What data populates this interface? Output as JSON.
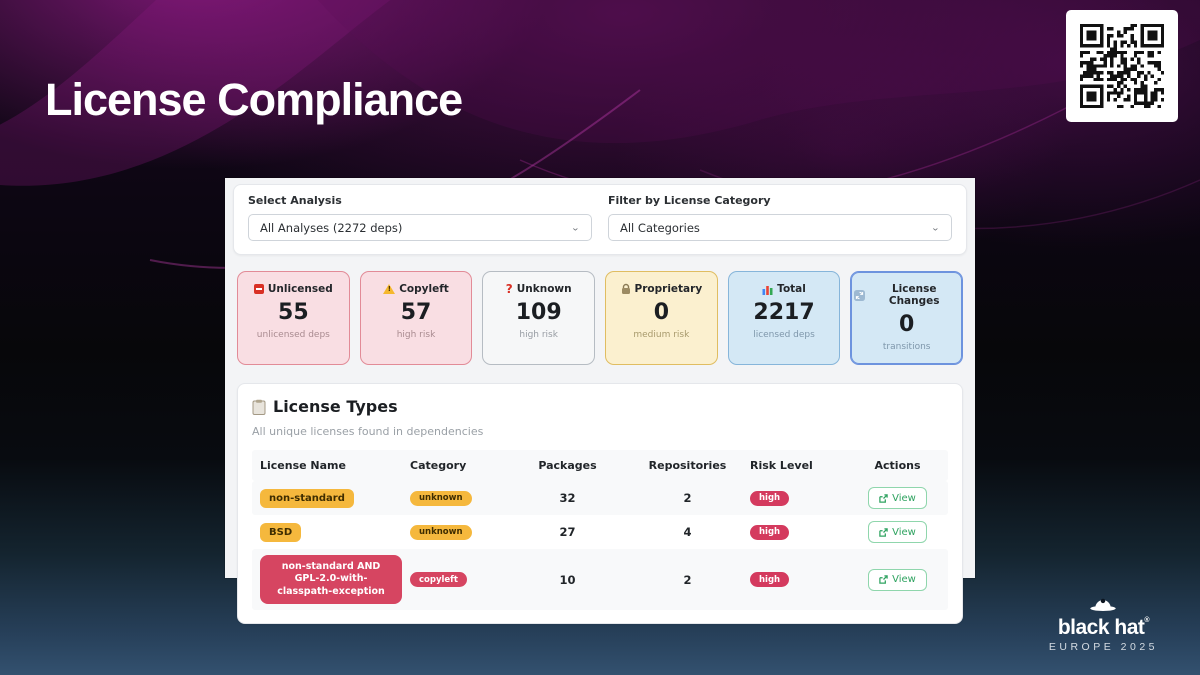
{
  "slide": {
    "title": "License Compliance",
    "logo": {
      "brand": "black hat",
      "trademark": "®",
      "event": "EUROPE 2025"
    }
  },
  "dashboard": {
    "filters": {
      "analysis": {
        "label": "Select Analysis",
        "value": "All Analyses (2272 deps)"
      },
      "category": {
        "label": "Filter by License Category",
        "value": "All Categories"
      }
    },
    "stats": [
      {
        "icon": "no-entry-icon",
        "label": "Unlicensed",
        "value": "55",
        "sub": "unlicensed deps"
      },
      {
        "icon": "warning-icon",
        "label": "Copyleft",
        "value": "57",
        "sub": "high risk"
      },
      {
        "icon": "question-icon",
        "label": "Unknown",
        "value": "109",
        "sub": "high risk"
      },
      {
        "icon": "lock-icon",
        "label": "Proprietary",
        "value": "0",
        "sub": "medium risk"
      },
      {
        "icon": "bar-chart-icon",
        "label": "Total",
        "value": "2217",
        "sub": "licensed deps"
      },
      {
        "icon": "refresh-icon",
        "label": "License Changes",
        "value": "0",
        "sub": "transitions"
      }
    ],
    "license_types": {
      "title": "License Types",
      "subtitle": "All unique licenses found in dependencies",
      "columns": [
        "License Name",
        "Category",
        "Packages",
        "Repositories",
        "Risk Level",
        "Actions"
      ],
      "rows": [
        {
          "name": "non-standard",
          "category": "unknown",
          "packages": "32",
          "repositories": "2",
          "risk": "high",
          "action": "View"
        },
        {
          "name": "BSD",
          "category": "unknown",
          "packages": "27",
          "repositories": "4",
          "risk": "high",
          "action": "View"
        },
        {
          "name": "non-standard AND GPL-2.0-with-classpath-exception",
          "category": "copyleft",
          "packages": "10",
          "repositories": "2",
          "risk": "high",
          "action": "View"
        }
      ]
    }
  },
  "colors": {
    "amber_badge": "#f5b83d",
    "crimson_badge": "#d64561",
    "risk_pill": "#d43a5e",
    "view_green": "#2fa360",
    "card_pink": "#f9dee3",
    "card_yellow": "#fbf0cf",
    "card_blue": "#d4e8f5",
    "bottom_glow": "#33516f"
  }
}
